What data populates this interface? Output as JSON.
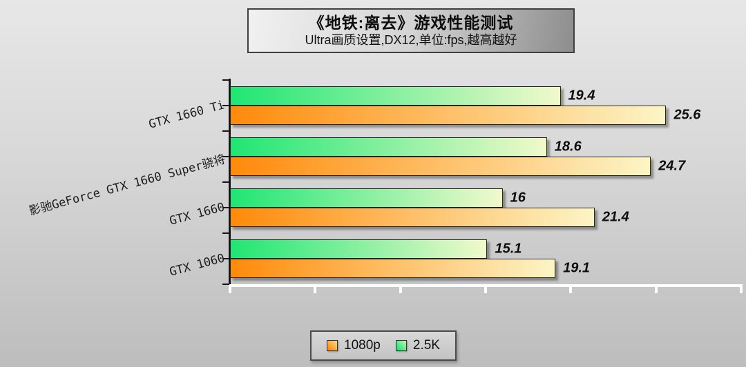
{
  "title": {
    "line1": "《地铁:离去》游戏性能测试",
    "line2": "Ultra画质设置,DX12,单位:fps,越高越好"
  },
  "colors": {
    "background_top": "#e7e7e7",
    "background_bottom": "#bdbdbd",
    "y_axis": "#141414",
    "x_axis": "#ffffff",
    "bar_border": "#262626",
    "value_text": "#0e0e0e"
  },
  "chart_data": {
    "type": "bar",
    "orientation": "horizontal",
    "title": "《地铁:离去》游戏性能测试",
    "subtitle": "Ultra画质设置,DX12,单位:fps,越高越好",
    "xlabel": "",
    "ylabel": "",
    "categories": [
      "GTX 1660 Ti",
      "影驰GeForce GTX 1660 Super骁将",
      "GTX 1660",
      "GTX 1060"
    ],
    "series": [
      {
        "name": "2.5K",
        "values": [
          19.4,
          18.6,
          16,
          15.1
        ],
        "color_start": "#1fe673",
        "color_end": "#f2f9cc"
      },
      {
        "name": "1080p",
        "values": [
          25.6,
          24.7,
          21.4,
          19.1
        ],
        "color_start": "#ff8a0a",
        "color_end": "#fcf5c6"
      }
    ],
    "xlim": [
      0,
      30
    ],
    "x_tick_step": 5,
    "grid": false,
    "value_labels_shown": true,
    "legend_position": "bottom"
  },
  "legend": {
    "items": [
      {
        "label": "1080p",
        "series": "1080p"
      },
      {
        "label": "2.5K",
        "series": "2.5K"
      }
    ]
  }
}
